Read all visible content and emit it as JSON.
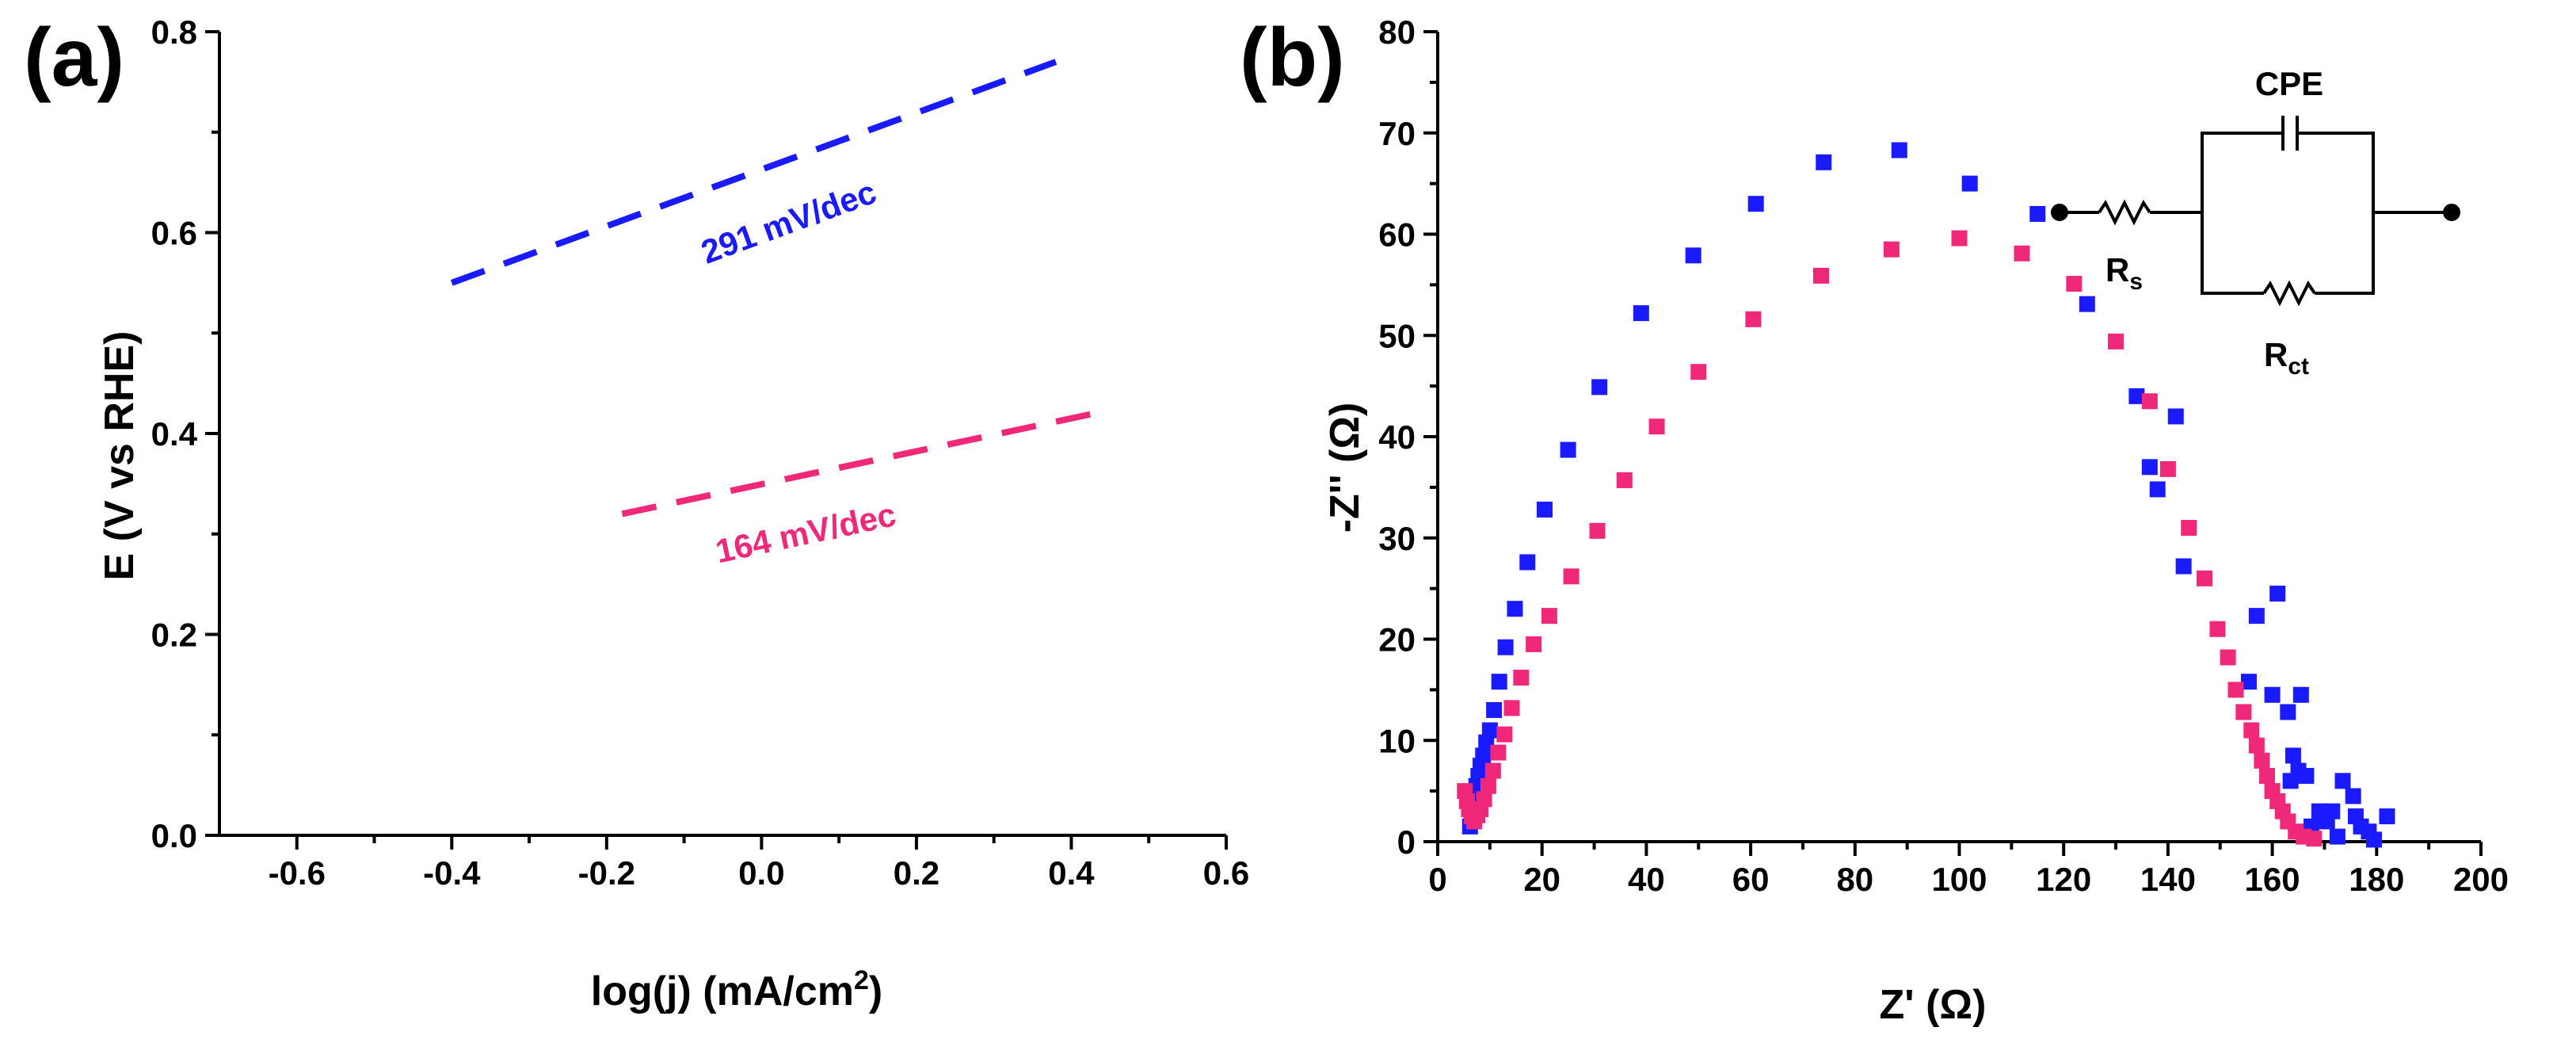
{
  "colors": {
    "blue": "#1a1aff",
    "pink": "#f0287a"
  },
  "chart_data": [
    {
      "type": "line",
      "panel_label": "(a)",
      "title": "",
      "xlabel": "log(j) (mA/cm",
      "xlabel_sup": "2",
      "xlabel_end": ")",
      "ylabel": "E (V vs RHE)",
      "xlim": [
        -0.7,
        0.6
      ],
      "ylim": [
        0.0,
        0.8
      ],
      "x_ticks": [
        -0.6,
        -0.4,
        -0.2,
        0.0,
        0.2,
        0.4,
        0.6
      ],
      "x_tick_labels": [
        "-0.6",
        "-0.4",
        "-0.2",
        "0.0",
        "0.2",
        "0.4",
        "0.6"
      ],
      "y_ticks": [
        0.0,
        0.2,
        0.4,
        0.6,
        0.8
      ],
      "y_tick_labels": [
        "0.0",
        "0.2",
        "0.4",
        "0.6",
        "0.8"
      ],
      "series": [
        {
          "name": "291 mV/dec",
          "color": "#1a1aff",
          "style": "dashed",
          "x": [
            -0.4,
            0.38
          ],
          "y": [
            0.55,
            0.77
          ],
          "annotation": "291 mV/dec",
          "annotation_at": [
            0.04,
            0.6
          ]
        },
        {
          "name": "164 mV/dec",
          "color": "#f0287a",
          "style": "dashed",
          "x": [
            -0.18,
            0.43
          ],
          "y": [
            0.32,
            0.42
          ],
          "annotation": "164 mV/dec",
          "annotation_at": [
            0.06,
            0.29
          ]
        }
      ]
    },
    {
      "type": "scatter",
      "panel_label": "(b)",
      "title": "",
      "xlabel": "Z' (Ω)",
      "ylabel": "-Z'' (Ω)",
      "xlim": [
        0,
        200
      ],
      "ylim": [
        0,
        80
      ],
      "x_ticks": [
        0,
        20,
        40,
        60,
        80,
        100,
        120,
        140,
        160,
        180,
        200
      ],
      "x_tick_labels": [
        "0",
        "20",
        "40",
        "60",
        "80",
        "100",
        "120",
        "140",
        "160",
        "180",
        "200"
      ],
      "y_ticks": [
        0,
        10,
        20,
        30,
        40,
        50,
        60,
        70,
        80
      ],
      "y_tick_labels": [
        "0",
        "10",
        "20",
        "30",
        "40",
        "50",
        "60",
        "70",
        "80"
      ],
      "series": [
        {
          "name": "blue",
          "color": "#1a1aff",
          "marker": "square",
          "x": [
            6.2,
            6.5,
            6.8,
            7.1,
            7.4,
            7.8,
            8.2,
            8.7,
            9.3,
            10.0,
            10.8,
            11.8,
            13.0,
            14.8,
            17.2,
            20.5,
            25.0,
            31.0,
            39.0,
            49.0,
            61.0,
            74.0,
            88.5,
            102.0,
            115.0,
            124.5,
            134.0,
            136.5,
            138.0,
            141.5,
            143.0,
            155.5,
            157.0,
            160.0,
            161.0,
            163.0,
            163.5,
            164.0,
            165.0,
            165.5,
            166.5,
            167.5,
            169.0,
            170.5,
            171.5,
            172.5,
            173.5,
            175.5,
            176.0,
            177.0,
            178.5,
            179.5,
            182.0
          ],
          "y": [
            1.5,
            2.5,
            3.5,
            4.5,
            5.5,
            6.5,
            7.5,
            8.5,
            9.8,
            11.0,
            13.0,
            15.8,
            19.2,
            23.0,
            27.6,
            32.8,
            38.7,
            44.9,
            52.2,
            57.9,
            63.0,
            67.1,
            68.3,
            65.0,
            62.0,
            53.1,
            44.0,
            37.0,
            34.8,
            42.0,
            27.2,
            15.8,
            22.3,
            14.5,
            24.5,
            12.8,
            6.0,
            8.5,
            7.0,
            14.5,
            6.5,
            1.5,
            3.0,
            2.0,
            3.0,
            0.5,
            6.0,
            4.5,
            2.5,
            1.5,
            1.0,
            0.2,
            2.5
          ]
        },
        {
          "name": "pink",
          "color": "#f0287a",
          "marker": "square",
          "x": [
            5.2,
            5.6,
            6.0,
            6.5,
            7.0,
            7.6,
            8.2,
            8.9,
            9.7,
            10.6,
            11.6,
            12.8,
            14.2,
            16.0,
            18.4,
            21.4,
            25.6,
            30.6,
            35.8,
            42.0,
            50.0,
            60.5,
            73.5,
            87.0,
            100.0,
            112.0,
            122.0,
            130.0,
            136.5,
            140.0,
            144.0,
            147.0,
            149.5,
            151.5,
            153.0,
            154.5,
            156.0,
            157.0,
            158.0,
            159.0,
            160.0,
            161.0,
            162.0,
            163.0,
            164.5,
            166.0,
            168.0
          ],
          "y": [
            5.0,
            4.0,
            3.2,
            2.5,
            2.0,
            2.6,
            3.2,
            4.2,
            5.5,
            7.0,
            8.8,
            10.6,
            13.2,
            16.2,
            19.5,
            22.3,
            26.2,
            30.7,
            35.7,
            41.0,
            46.4,
            51.6,
            55.9,
            58.5,
            59.6,
            58.1,
            55.1,
            49.4,
            43.5,
            36.8,
            31.0,
            26.0,
            21.0,
            18.2,
            15.0,
            12.8,
            11.0,
            9.5,
            8.0,
            6.5,
            5.0,
            4.0,
            3.0,
            2.0,
            1.0,
            0.5,
            0.3
          ]
        }
      ],
      "inset": {
        "label_cpe": "CPE",
        "label_rs": "R",
        "label_rs_sub": "s",
        "label_rct": "R",
        "label_rct_sub": "ct"
      }
    }
  ]
}
